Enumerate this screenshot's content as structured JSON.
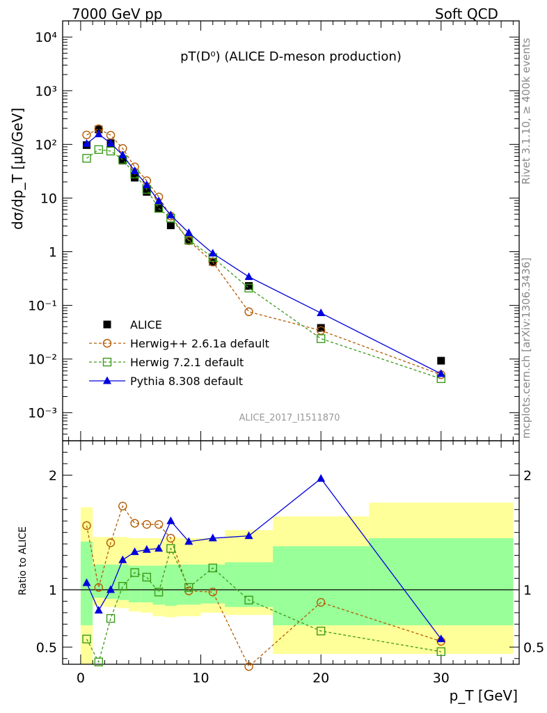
{
  "header": {
    "left": "7000 GeV pp",
    "right": "Soft QCD"
  },
  "side_labels": {
    "rivet": "Rivet 3.1.10, ≥ 400k events",
    "mcplots": "mcplots.cern.ch [arXiv:1306.3436]"
  },
  "watermark": "ALICE_2017_I1511870",
  "chart_data": [
    {
      "type": "scatter",
      "panel": "main",
      "title": "pT(D⁰) (ALICE D-meson production)",
      "ylabel": "dσ/dp_T [μb/GeV]",
      "xlabel": "",
      "yscale": "log",
      "ylim": [
        0.0003,
        20000
      ],
      "xlim": [
        -1.5,
        36.5
      ],
      "legend_position": "middle-left",
      "y_ticks": [
        "10⁻³",
        "10⁻²",
        "10⁻¹",
        "1",
        "10",
        "10²",
        "10³",
        "10⁴"
      ],
      "series": [
        {
          "name": "ALICE",
          "color": "#000000",
          "marker": "square-filled",
          "line": "none",
          "x": [
            0.5,
            1.5,
            2.5,
            3.5,
            4.5,
            5.5,
            6.5,
            7.5,
            9,
            11,
            14,
            20,
            30
          ],
          "y": [
            97,
            190,
            105,
            50,
            24,
            13,
            6.5,
            3.1,
            1.6,
            0.65,
            0.23,
            0.038,
            0.0093
          ]
        },
        {
          "name": "Herwig++ 2.6.1a default",
          "color": "#b35a00",
          "marker": "circle-open",
          "line": "dashed",
          "x": [
            0.5,
            1.5,
            2.5,
            3.5,
            4.5,
            5.5,
            6.5,
            7.5,
            9,
            11,
            14,
            20,
            30
          ],
          "y": [
            150,
            195,
            148,
            84,
            38,
            21,
            10.5,
            4.6,
            1.6,
            0.64,
            0.076,
            0.034,
            0.0051
          ]
        },
        {
          "name": "Herwig 7.2.1 default",
          "color": "#3a9a1a",
          "marker": "square-open",
          "line": "dashed",
          "x": [
            0.5,
            1.5,
            2.5,
            3.5,
            4.5,
            5.5,
            6.5,
            7.5,
            9,
            11,
            14,
            20,
            30
          ],
          "y": [
            55,
            80,
            75,
            52,
            28,
            14.5,
            6.4,
            4.2,
            1.65,
            0.78,
            0.21,
            0.024,
            0.0043
          ]
        },
        {
          "name": "Pythia 8.308 default",
          "color": "#0000dd",
          "marker": "triangle-filled",
          "line": "solid",
          "x": [
            0.5,
            1.5,
            2.5,
            3.5,
            4.5,
            5.5,
            6.5,
            7.5,
            9,
            11,
            14,
            20,
            30
          ],
          "y": [
            103,
            155,
            105,
            63,
            32,
            17.5,
            8.8,
            4.8,
            2.25,
            0.93,
            0.34,
            0.072,
            0.0053
          ]
        }
      ]
    },
    {
      "type": "line",
      "panel": "ratio",
      "ylabel": "Ratio to ALICE",
      "xlabel": "p_T [GeV]",
      "ylim": [
        0.35,
        2.3
      ],
      "xlim": [
        -1.5,
        36.5
      ],
      "y_ticks": [
        "0.5",
        "1",
        "2"
      ],
      "x_ticks": [
        "0",
        "10",
        "20",
        "30"
      ],
      "bands": {
        "x_edges": [
          0,
          1,
          2,
          3,
          4,
          5,
          6,
          7,
          8,
          10,
          12,
          16,
          24,
          36
        ],
        "yellow_low": [
          0.3,
          0.86,
          0.85,
          0.84,
          0.81,
          0.8,
          0.77,
          0.76,
          0.77,
          0.8,
          0.78,
          0.44,
          0.44
        ],
        "yellow_high": [
          1.72,
          1.46,
          1.46,
          1.46,
          1.45,
          1.45,
          1.45,
          1.46,
          1.45,
          1.45,
          1.52,
          1.64,
          1.76
        ],
        "green_low": [
          0.69,
          0.93,
          0.92,
          0.91,
          0.89,
          0.89,
          0.87,
          0.86,
          0.87,
          0.88,
          0.85,
          0.69,
          0.69
        ],
        "green_high": [
          1.42,
          1.22,
          1.22,
          1.22,
          1.21,
          1.21,
          1.21,
          1.22,
          1.22,
          1.22,
          1.24,
          1.38,
          1.45
        ]
      },
      "series": [
        {
          "name": "Herwig++ 2.6.1a default",
          "color": "#b35a00",
          "marker": "circle-open",
          "line": "dashed",
          "x": [
            0.5,
            1.5,
            2.5,
            3.5,
            4.5,
            5.5,
            6.5,
            7.5,
            9,
            11,
            14,
            20,
            30
          ],
          "y": [
            1.56,
            1.02,
            1.41,
            1.73,
            1.58,
            1.57,
            1.57,
            1.45,
            0.99,
            0.98,
            0.33,
            0.89,
            0.55
          ]
        },
        {
          "name": "Herwig 7.2.1 default",
          "color": "#3a9a1a",
          "marker": "square-open",
          "line": "dashed",
          "x": [
            0.5,
            1.5,
            2.5,
            3.5,
            4.5,
            5.5,
            6.5,
            7.5,
            9,
            11,
            14,
            20,
            30
          ],
          "y": [
            0.57,
            0.37,
            0.75,
            1.03,
            1.15,
            1.11,
            0.98,
            1.36,
            1.02,
            1.19,
            0.91,
            0.64,
            0.46
          ]
        },
        {
          "name": "Pythia 8.308 default",
          "color": "#0000dd",
          "marker": "triangle-filled",
          "line": "solid",
          "x": [
            0.5,
            1.5,
            2.5,
            3.5,
            4.5,
            5.5,
            6.5,
            7.5,
            9,
            11,
            14,
            20,
            30
          ],
          "y": [
            1.06,
            0.82,
            1.0,
            1.26,
            1.33,
            1.35,
            1.36,
            1.6,
            1.42,
            1.45,
            1.47,
            1.97,
            0.57
          ]
        }
      ]
    }
  ]
}
